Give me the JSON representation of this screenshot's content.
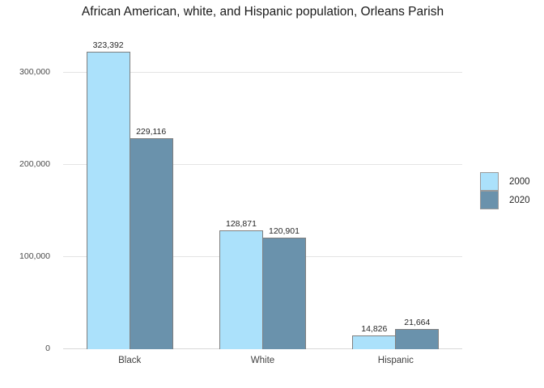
{
  "chart_data": {
    "type": "bar",
    "title": "African American, white, and Hispanic population, Orleans Parish",
    "categories": [
      "Black",
      "White",
      "Hispanic"
    ],
    "series": [
      {
        "name": "2000",
        "color": "#abe1fb",
        "values": [
          323392,
          128871,
          14826
        ],
        "labels": [
          "323,392",
          "128,871",
          "14,826"
        ]
      },
      {
        "name": "2020",
        "color": "#6a92ac",
        "values": [
          229116,
          120901,
          21664
        ],
        "labels": [
          "229,116",
          "120,901",
          "21,664"
        ]
      }
    ],
    "xlabel": "",
    "ylabel": "",
    "ylim": [
      0,
      337000
    ],
    "yticks": {
      "values": [
        0,
        100000,
        200000,
        300000
      ],
      "labels": [
        "0",
        "100,000",
        "200,000",
        "300,000"
      ]
    },
    "grid": true,
    "legend_position": "right",
    "bar_border_color": "#7f7f7f",
    "gridline_color": "#e4e4e4",
    "background_color": "#ffffff",
    "text_color": "#262626"
  }
}
